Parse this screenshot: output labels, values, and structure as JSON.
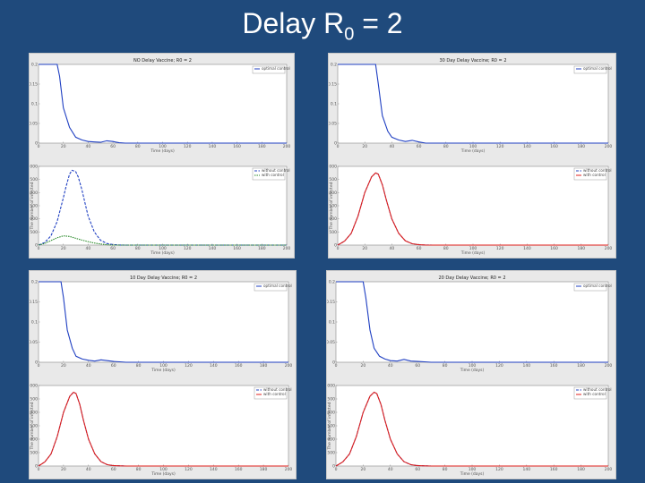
{
  "slide": {
    "title_main": "Delay R",
    "title_sub": "0",
    "title_rest": " = 2"
  },
  "colors": {
    "blue": "#1f3fc2",
    "red": "#e0201c",
    "green": "#2a8a2a",
    "background": "#1f4a7c"
  },
  "chart_data": [
    {
      "id": "p0-top",
      "type": "line",
      "panel": 0,
      "position": "top",
      "title": "NO Delay Vaccine; R0 = 2",
      "xlabel": "Time (days)",
      "ylabel": "",
      "xlim": [
        0,
        200
      ],
      "ylim": [
        0,
        0.2
      ],
      "xticks": [
        "0",
        "20",
        "40",
        "60",
        "80",
        "100",
        "120",
        "140",
        "160",
        "180",
        "200"
      ],
      "yticks": [
        "0",
        "0.05",
        "0.1",
        "0.15",
        "0.2"
      ],
      "legend": [
        "optimal control"
      ],
      "series": [
        {
          "name": "optimal control",
          "color": "#1f3fc2",
          "dash": "",
          "x": [
            0,
            15,
            17,
            20,
            25,
            30,
            35,
            40,
            45,
            50,
            55,
            60,
            65,
            70,
            200
          ],
          "y": [
            0.2,
            0.2,
            0.17,
            0.09,
            0.04,
            0.015,
            0.008,
            0.004,
            0.003,
            0.002,
            0.006,
            0.004,
            0.001,
            0,
            0
          ]
        }
      ]
    },
    {
      "id": "p0-bottom",
      "type": "line",
      "panel": 0,
      "position": "bottom",
      "title": "",
      "xlabel": "Time (days)",
      "ylabel": "The number of infected",
      "xlim": [
        0,
        200
      ],
      "ylim": [
        0,
        3000
      ],
      "xticks": [
        "0",
        "20",
        "40",
        "60",
        "80",
        "100",
        "120",
        "140",
        "160",
        "180",
        "200"
      ],
      "yticks": [
        "0",
        "500",
        "1000",
        "1500",
        "2000",
        "2500",
        "3000"
      ],
      "legend": [
        "without control",
        "with control"
      ],
      "series": [
        {
          "name": "without control",
          "color": "#1f3fc2",
          "dash": "3,1.5",
          "x": [
            0,
            5,
            10,
            15,
            20,
            22,
            25,
            27,
            30,
            32,
            35,
            38,
            40,
            45,
            50,
            55,
            60,
            65,
            70,
            200
          ],
          "y": [
            0,
            100,
            350,
            900,
            1800,
            2200,
            2700,
            2850,
            2800,
            2600,
            2100,
            1500,
            1100,
            500,
            180,
            60,
            20,
            5,
            0,
            0
          ]
        },
        {
          "name": "with control",
          "color": "#2a8a2a",
          "dash": "1.5,1",
          "x": [
            0,
            5,
            10,
            15,
            20,
            25,
            30,
            35,
            40,
            45,
            50,
            55,
            60,
            200
          ],
          "y": [
            0,
            60,
            170,
            280,
            350,
            330,
            260,
            190,
            130,
            80,
            40,
            15,
            0,
            0
          ]
        }
      ]
    },
    {
      "id": "p1-top",
      "type": "line",
      "panel": 1,
      "position": "top",
      "title": "30 Day Delay Vaccine; R0 = 2",
      "xlabel": "Time (days)",
      "ylabel": "",
      "xlim": [
        0,
        200
      ],
      "ylim": [
        0,
        0.2
      ],
      "xticks": [
        "0",
        "20",
        "40",
        "60",
        "80",
        "100",
        "120",
        "140",
        "160",
        "180",
        "200"
      ],
      "yticks": [
        "0",
        "0.05",
        "0.1",
        "0.15",
        "0.2"
      ],
      "legend": [
        "optimal control"
      ],
      "series": [
        {
          "name": "optimal control",
          "color": "#1f3fc2",
          "dash": "",
          "x": [
            0,
            28,
            30,
            33,
            37,
            40,
            45,
            50,
            55,
            60,
            65,
            200
          ],
          "y": [
            0.2,
            0.2,
            0.15,
            0.07,
            0.03,
            0.015,
            0.008,
            0.004,
            0.007,
            0.003,
            0,
            0
          ]
        }
      ]
    },
    {
      "id": "p1-bottom",
      "type": "line",
      "panel": 1,
      "position": "bottom",
      "title": "",
      "xlabel": "Time (days)",
      "ylabel": "The number of infected",
      "xlim": [
        0,
        200
      ],
      "ylim": [
        0,
        3000
      ],
      "xticks": [
        "0",
        "20",
        "40",
        "60",
        "80",
        "100",
        "120",
        "140",
        "160",
        "180",
        "200"
      ],
      "yticks": [
        "0",
        "500",
        "1000",
        "1500",
        "2000",
        "2500",
        "3000"
      ],
      "legend": [
        "without control",
        "with control"
      ],
      "series": [
        {
          "name": "without control",
          "color": "#1f3fc2",
          "dash": "3,1.5",
          "x": [
            0,
            5,
            10,
            15,
            20,
            25,
            28,
            30,
            33,
            36,
            40,
            45,
            50,
            55,
            60,
            65,
            70,
            200
          ],
          "y": [
            0,
            150,
            450,
            1100,
            2000,
            2600,
            2750,
            2700,
            2300,
            1700,
            1000,
            450,
            160,
            50,
            15,
            5,
            0,
            0
          ]
        },
        {
          "name": "with control",
          "color": "#e0201c",
          "dash": "",
          "x": [
            0,
            5,
            10,
            15,
            20,
            25,
            28,
            30,
            33,
            36,
            40,
            45,
            50,
            55,
            60,
            65,
            70,
            200
          ],
          "y": [
            0,
            150,
            450,
            1100,
            2000,
            2600,
            2750,
            2700,
            2300,
            1700,
            1000,
            450,
            160,
            50,
            15,
            5,
            0,
            0
          ]
        }
      ]
    },
    {
      "id": "p2-top",
      "type": "line",
      "panel": 2,
      "position": "top",
      "title": "10 Day Delay Vaccine; R0 = 2",
      "xlabel": "Time (days)",
      "ylabel": "",
      "xlim": [
        0,
        200
      ],
      "ylim": [
        0,
        0.2
      ],
      "xticks": [
        "0",
        "20",
        "40",
        "60",
        "80",
        "100",
        "120",
        "140",
        "160",
        "180",
        "200"
      ],
      "yticks": [
        "0",
        "0.05",
        "0.1",
        "0.15",
        "0.2"
      ],
      "legend": [
        "optimal control"
      ],
      "series": [
        {
          "name": "optimal control",
          "color": "#1f3fc2",
          "dash": "",
          "x": [
            0,
            18,
            20,
            23,
            27,
            30,
            35,
            40,
            45,
            50,
            55,
            60,
            65,
            70,
            200
          ],
          "y": [
            0.2,
            0.2,
            0.16,
            0.08,
            0.035,
            0.015,
            0.008,
            0.005,
            0.003,
            0.006,
            0.004,
            0.002,
            0.001,
            0,
            0
          ]
        }
      ]
    },
    {
      "id": "p2-bottom",
      "type": "line",
      "panel": 2,
      "position": "bottom",
      "title": "",
      "xlabel": "Time (days)",
      "ylabel": "The number of infected",
      "xlim": [
        0,
        200
      ],
      "ylim": [
        0,
        3000
      ],
      "xticks": [
        "0",
        "20",
        "40",
        "60",
        "80",
        "100",
        "120",
        "140",
        "160",
        "180",
        "200"
      ],
      "yticks": [
        "0",
        "500",
        "1000",
        "1500",
        "2000",
        "2500",
        "3000"
      ],
      "legend": [
        "without control",
        "with control"
      ],
      "series": [
        {
          "name": "without control",
          "color": "#1f3fc2",
          "dash": "3,1.5",
          "x": [
            0,
            5,
            10,
            15,
            20,
            25,
            28,
            30,
            33,
            36,
            40,
            45,
            50,
            55,
            60,
            65,
            70,
            200
          ],
          "y": [
            0,
            150,
            450,
            1100,
            2000,
            2600,
            2750,
            2700,
            2300,
            1700,
            1000,
            450,
            160,
            50,
            15,
            5,
            0,
            0
          ]
        },
        {
          "name": "with control",
          "color": "#e0201c",
          "dash": "",
          "x": [
            0,
            5,
            10,
            15,
            20,
            25,
            28,
            30,
            33,
            36,
            40,
            45,
            50,
            55,
            60,
            65,
            70,
            200
          ],
          "y": [
            0,
            150,
            450,
            1100,
            2000,
            2600,
            2750,
            2700,
            2300,
            1700,
            1000,
            450,
            160,
            50,
            15,
            5,
            0,
            0
          ]
        }
      ]
    },
    {
      "id": "p3-top",
      "type": "line",
      "panel": 3,
      "position": "top",
      "title": "20 Day Delay Vaccine; R0 = 2",
      "xlabel": "Time (days)",
      "ylabel": "",
      "xlim": [
        0,
        200
      ],
      "ylim": [
        0,
        0.2
      ],
      "xticks": [
        "0",
        "20",
        "40",
        "60",
        "80",
        "100",
        "120",
        "140",
        "160",
        "180",
        "200"
      ],
      "yticks": [
        "0",
        "0.05",
        "0.1",
        "0.15",
        "0.2"
      ],
      "legend": [
        "optimal control"
      ],
      "series": [
        {
          "name": "optimal control",
          "color": "#1f3fc2",
          "dash": "",
          "x": [
            0,
            20,
            22,
            25,
            28,
            32,
            36,
            40,
            45,
            50,
            55,
            60,
            65,
            70,
            200
          ],
          "y": [
            0.2,
            0.2,
            0.16,
            0.08,
            0.035,
            0.015,
            0.008,
            0.004,
            0.003,
            0.007,
            0.003,
            0.002,
            0.001,
            0,
            0
          ]
        }
      ]
    },
    {
      "id": "p3-bottom",
      "type": "line",
      "panel": 3,
      "position": "bottom",
      "title": "",
      "xlabel": "Time (days)",
      "ylabel": "The number of infected",
      "xlim": [
        0,
        200
      ],
      "ylim": [
        0,
        3000
      ],
      "xticks": [
        "0",
        "20",
        "40",
        "60",
        "80",
        "100",
        "120",
        "140",
        "160",
        "180",
        "200"
      ],
      "yticks": [
        "0",
        "500",
        "1000",
        "1500",
        "2000",
        "2500",
        "3000"
      ],
      "legend": [
        "without control",
        "with control"
      ],
      "series": [
        {
          "name": "without control",
          "color": "#1f3fc2",
          "dash": "3,1.5",
          "x": [
            0,
            5,
            10,
            15,
            20,
            25,
            28,
            30,
            33,
            36,
            40,
            45,
            50,
            55,
            60,
            65,
            70,
            200
          ],
          "y": [
            0,
            150,
            450,
            1100,
            2000,
            2600,
            2750,
            2700,
            2300,
            1700,
            1000,
            450,
            160,
            50,
            15,
            5,
            0,
            0
          ]
        },
        {
          "name": "with control",
          "color": "#e0201c",
          "dash": "",
          "x": [
            0,
            5,
            10,
            15,
            20,
            25,
            28,
            30,
            33,
            36,
            40,
            45,
            50,
            55,
            60,
            65,
            70,
            200
          ],
          "y": [
            0,
            150,
            450,
            1100,
            2000,
            2600,
            2750,
            2700,
            2300,
            1700,
            1000,
            450,
            160,
            50,
            15,
            5,
            0,
            0
          ]
        }
      ]
    }
  ]
}
